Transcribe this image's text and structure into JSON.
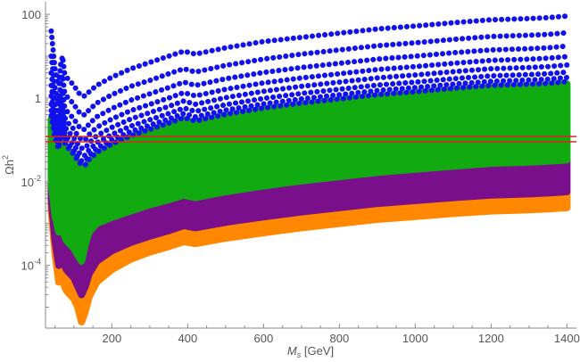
{
  "chart_data": {
    "type": "scatter",
    "title": "",
    "xlabel": {
      "symbol": "M",
      "subscript": "s",
      "unit": " [GeV]"
    },
    "ylabel": {
      "base": "Ωh",
      "superscript": "2"
    },
    "xlim": [
      25,
      1425
    ],
    "ylim_log10": [
      -5.5,
      2.3
    ],
    "y_scale": "log",
    "grid": false,
    "legend": "none",
    "x_ticks": [
      {
        "value": 200,
        "label": "200"
      },
      {
        "value": 400,
        "label": "400"
      },
      {
        "value": 600,
        "label": "600"
      },
      {
        "value": 800,
        "label": "800"
      },
      {
        "value": 1000,
        "label": "1000"
      },
      {
        "value": 1200,
        "label": "1200"
      },
      {
        "value": 1400,
        "label": "1400"
      }
    ],
    "y_ticks": [
      {
        "log10": 2,
        "label": "100"
      },
      {
        "log10": 0,
        "label": "1"
      },
      {
        "log10": -2,
        "base": "10",
        "exp": "-2"
      },
      {
        "log10": -4,
        "base": "10",
        "exp": "-4"
      }
    ],
    "colors": {
      "blue": "#1111ee",
      "green": "#11aa11",
      "purple": "#7a0f8c",
      "orange": "#ff8800",
      "reference_band": "#dd2222",
      "axis": "#888888"
    },
    "reference_lines": [
      {
        "y": 0.12,
        "color": "#dd2222"
      },
      {
        "y": 0.09,
        "color": "#dd2222"
      }
    ],
    "x_samples": [
      40,
      50,
      60,
      65,
      70,
      75,
      80,
      90,
      100,
      110,
      120,
      130,
      140,
      160,
      200,
      250,
      300,
      350,
      390,
      420,
      500,
      600,
      700,
      800,
      900,
      1000,
      1100,
      1200,
      1300,
      1350,
      1400
    ],
    "blue_curves_log10": [
      [
        1.6,
        0.7,
        0.3,
        0.8,
        1.0,
        0.6,
        0.5,
        0.4,
        0.3,
        0.15,
        0.05,
        0.05,
        0.15,
        0.3,
        0.5,
        0.7,
        0.85,
        1.0,
        1.12,
        1.05,
        1.2,
        1.35,
        1.45,
        1.55,
        1.65,
        1.72,
        1.8,
        1.87,
        1.9,
        1.92,
        1.96
      ],
      [
        1.0,
        0.25,
        -0.15,
        0.35,
        0.55,
        0.15,
        0.05,
        -0.05,
        -0.15,
        -0.3,
        -0.4,
        -0.4,
        -0.28,
        -0.12,
        0.08,
        0.28,
        0.42,
        0.58,
        0.7,
        0.62,
        0.78,
        0.93,
        1.05,
        1.15,
        1.25,
        1.32,
        1.4,
        1.47,
        1.5,
        1.52,
        1.56
      ],
      [
        0.6,
        -0.1,
        -0.45,
        0.0,
        0.2,
        -0.2,
        -0.3,
        -0.4,
        -0.5,
        -0.65,
        -0.75,
        -0.75,
        -0.62,
        -0.45,
        -0.25,
        -0.05,
        0.1,
        0.25,
        0.38,
        0.3,
        0.46,
        0.61,
        0.73,
        0.83,
        0.93,
        1.0,
        1.08,
        1.15,
        1.18,
        1.2,
        1.24
      ],
      [
        0.3,
        -0.35,
        -0.7,
        -0.25,
        -0.05,
        -0.45,
        -0.55,
        -0.65,
        -0.75,
        -0.9,
        -1.0,
        -1.0,
        -0.87,
        -0.7,
        -0.5,
        -0.3,
        -0.15,
        0.0,
        0.13,
        0.05,
        0.21,
        0.36,
        0.48,
        0.58,
        0.68,
        0.75,
        0.83,
        0.9,
        0.93,
        0.95,
        0.99
      ],
      [
        0.05,
        -0.55,
        -0.9,
        -0.45,
        -0.25,
        -0.65,
        -0.75,
        -0.85,
        -0.95,
        -1.1,
        -1.2,
        -1.2,
        -1.07,
        -0.9,
        -0.7,
        -0.5,
        -0.35,
        -0.2,
        -0.07,
        -0.15,
        0.01,
        0.16,
        0.28,
        0.38,
        0.48,
        0.55,
        0.63,
        0.7,
        0.73,
        0.75,
        0.79
      ],
      [
        -0.15,
        -0.72,
        -1.05,
        -0.62,
        -0.42,
        -0.82,
        -0.92,
        -1.02,
        -1.12,
        -1.27,
        -1.37,
        -1.37,
        -1.24,
        -1.07,
        -0.87,
        -0.67,
        -0.52,
        -0.37,
        -0.24,
        -0.32,
        -0.16,
        -0.01,
        0.11,
        0.21,
        0.31,
        0.38,
        0.46,
        0.53,
        0.56,
        0.58,
        0.62
      ],
      [
        -0.3,
        -0.85,
        -1.15,
        -0.75,
        -0.55,
        -0.95,
        -1.05,
        -1.15,
        -1.25,
        -1.4,
        -1.5,
        -1.5,
        -1.37,
        -1.2,
        -1.0,
        -0.8,
        -0.65,
        -0.5,
        -0.37,
        -0.45,
        -0.29,
        -0.14,
        -0.02,
        0.08,
        0.18,
        0.25,
        0.33,
        0.4,
        0.43,
        0.45,
        0.49
      ],
      [
        -0.42,
        -0.95,
        -1.22,
        -0.85,
        -0.66,
        -1.05,
        -1.15,
        -1.25,
        -1.35,
        -1.5,
        -1.6,
        -1.6,
        -1.47,
        -1.3,
        -1.1,
        -0.9,
        -0.75,
        -0.6,
        -0.47,
        -0.55,
        -0.39,
        -0.24,
        -0.12,
        -0.02,
        0.08,
        0.15,
        0.23,
        0.3,
        0.33,
        0.35,
        0.39
      ]
    ],
    "green_band_log10": {
      "top": [
        -0.5,
        -1.0,
        -1.25,
        -0.9,
        -0.7,
        -1.1,
        -1.2,
        -1.3,
        -1.4,
        -1.55,
        -1.65,
        -1.65,
        -1.52,
        -1.35,
        -1.15,
        -0.95,
        -0.8,
        -0.65,
        -0.52,
        -0.6,
        -0.44,
        -0.29,
        -0.17,
        -0.07,
        0.03,
        0.1,
        0.18,
        0.25,
        0.28,
        0.3,
        0.34
      ],
      "bottom": [
        -2.0,
        -2.8,
        -3.2,
        -2.9,
        -2.9,
        -3.3,
        -3.4,
        -3.5,
        -3.6,
        -3.75,
        -3.9,
        -3.5,
        -3.2,
        -3.0,
        -2.85,
        -2.7,
        -2.55,
        -2.43,
        -2.32,
        -2.38,
        -2.24,
        -2.1,
        -1.98,
        -1.88,
        -1.78,
        -1.7,
        -1.63,
        -1.56,
        -1.53,
        -1.51,
        -1.48
      ]
    },
    "purple_band_log10": {
      "top": [
        -2.0,
        -2.8,
        -3.2,
        -2.9,
        -2.9,
        -3.3,
        -3.4,
        -3.5,
        -3.6,
        -3.75,
        -3.9,
        -3.5,
        -3.2,
        -3.0,
        -2.85,
        -2.7,
        -2.55,
        -2.43,
        -2.32,
        -2.38,
        -2.24,
        -2.1,
        -1.98,
        -1.88,
        -1.78,
        -1.7,
        -1.63,
        -1.56,
        -1.53,
        -1.51,
        -1.48
      ],
      "bottom": [
        -2.4,
        -3.4,
        -4.0,
        -3.8,
        -3.7,
        -4.0,
        -4.1,
        -4.2,
        -4.3,
        -4.5,
        -4.7,
        -4.5,
        -4.2,
        -3.9,
        -3.65,
        -3.45,
        -3.3,
        -3.17,
        -3.05,
        -3.1,
        -2.97,
        -2.84,
        -2.72,
        -2.62,
        -2.52,
        -2.45,
        -2.38,
        -2.32,
        -2.29,
        -2.27,
        -2.24
      ]
    },
    "orange_band_log10": {
      "top": [
        -2.4,
        -3.4,
        -4.0,
        -3.8,
        -3.7,
        -4.0,
        -4.1,
        -4.2,
        -4.3,
        -4.5,
        -4.7,
        -4.5,
        -4.2,
        -3.9,
        -3.65,
        -3.45,
        -3.3,
        -3.17,
        -3.05,
        -3.1,
        -2.97,
        -2.84,
        -2.72,
        -2.62,
        -2.52,
        -2.45,
        -2.38,
        -2.32,
        -2.29,
        -2.27,
        -2.24
      ],
      "bottom": [
        -2.7,
        -3.7,
        -4.4,
        -4.2,
        -4.1,
        -4.5,
        -4.6,
        -4.7,
        -4.8,
        -5.0,
        -5.35,
        -5.1,
        -4.75,
        -4.4,
        -4.1,
        -3.85,
        -3.68,
        -3.55,
        -3.43,
        -3.48,
        -3.35,
        -3.22,
        -3.1,
        -3.0,
        -2.9,
        -2.83,
        -2.76,
        -2.7,
        -2.67,
        -2.65,
        -2.62
      ]
    }
  }
}
